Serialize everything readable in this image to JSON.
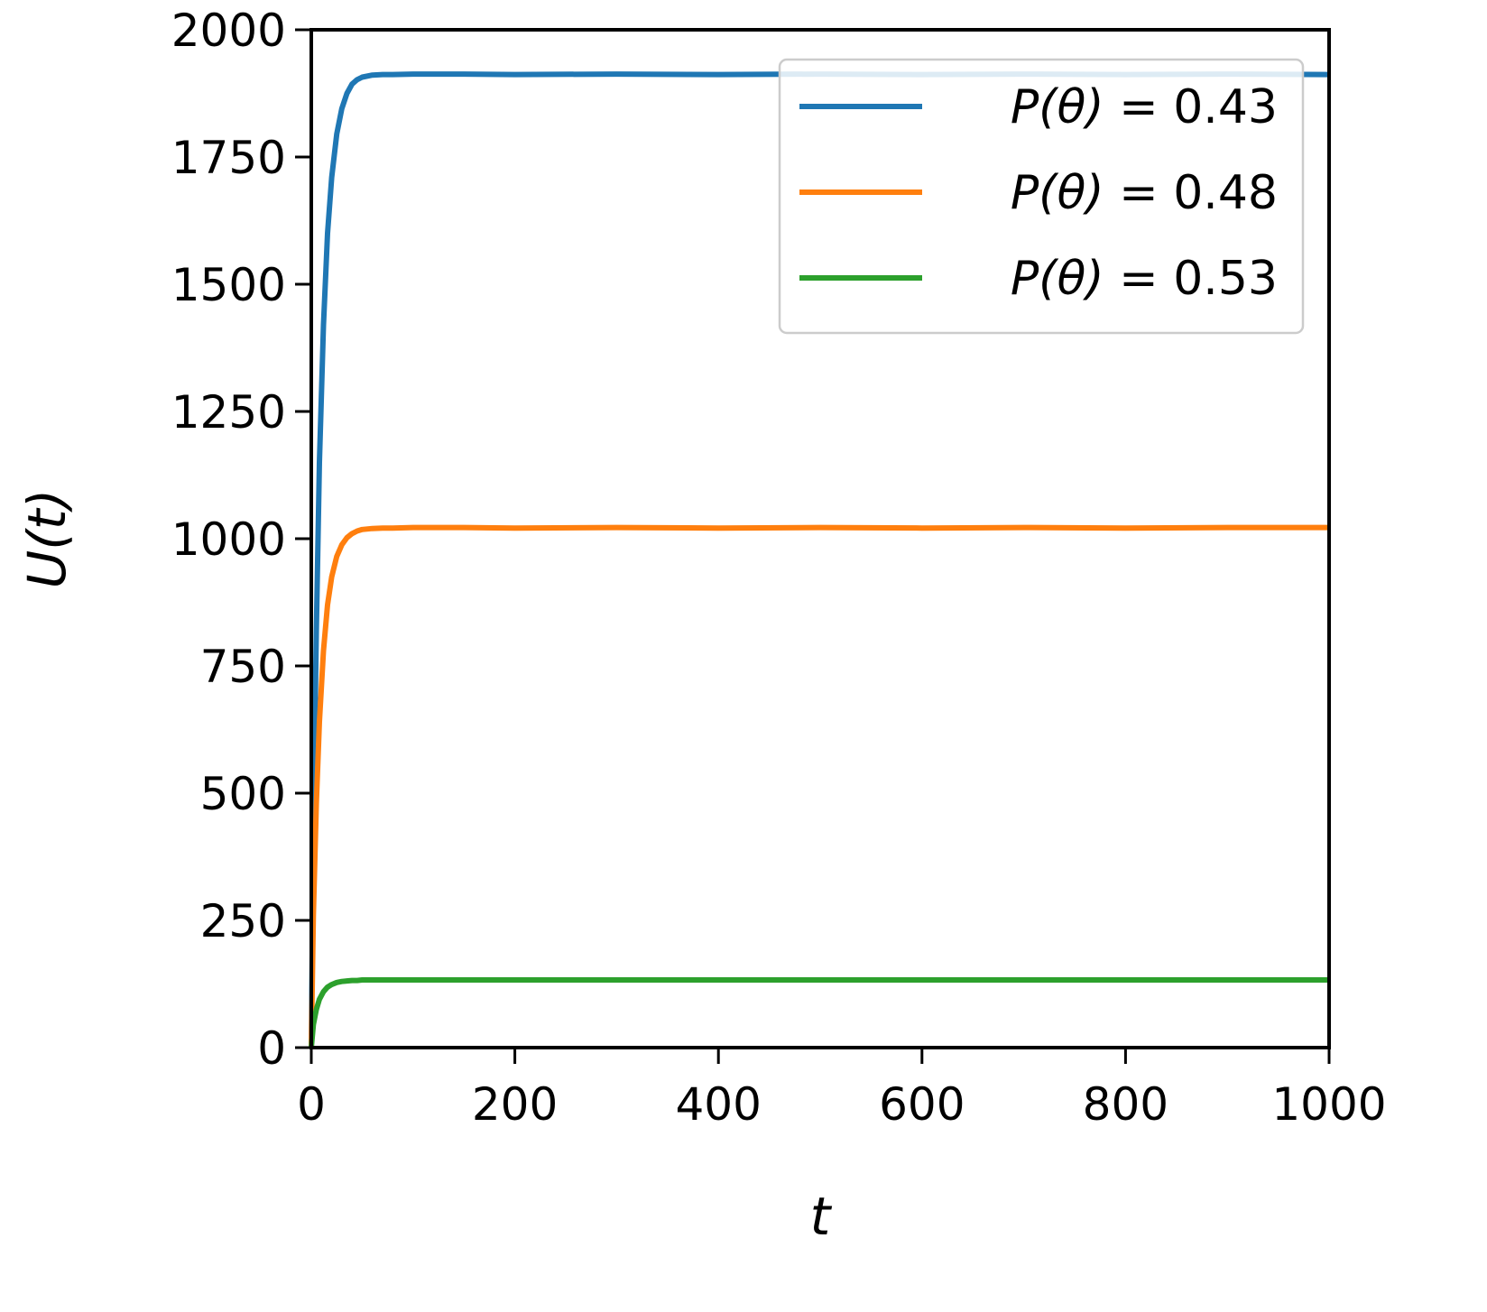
{
  "chart_data": {
    "type": "line",
    "title": "",
    "xlabel": "t",
    "ylabel": "U(t)",
    "xlim": [
      0,
      1000
    ],
    "ylim": [
      0,
      2000
    ],
    "xticks": [
      "0",
      "200",
      "400",
      "600",
      "800",
      "1000"
    ],
    "yticks": [
      "0",
      "250",
      "500",
      "750",
      "1000",
      "1250",
      "1500",
      "1750",
      "2000"
    ],
    "grid": false,
    "legend_position": "top-right",
    "series": [
      {
        "name": "P(θ) = 0.43",
        "legend": {
          "prefix": "P(θ)",
          "eq": " = ",
          "value": "0.43"
        },
        "color": "#1f77b4",
        "x": [
          0,
          2,
          5,
          8,
          12,
          16,
          20,
          25,
          30,
          35,
          40,
          45,
          50,
          60,
          70,
          80,
          100,
          150,
          200,
          300,
          400,
          500,
          600,
          700,
          800,
          900,
          1000
        ],
        "y": [
          0,
          420,
          820,
          1150,
          1420,
          1600,
          1710,
          1795,
          1845,
          1875,
          1893,
          1902,
          1907,
          1911,
          1912,
          1912,
          1913,
          1913,
          1912,
          1913,
          1912,
          1913,
          1912,
          1913,
          1912,
          1913,
          1912
        ]
      },
      {
        "name": "P(θ) = 0.48",
        "legend": {
          "prefix": "P(θ)",
          "eq": " = ",
          "value": "0.48"
        },
        "color": "#ff7f0e",
        "x": [
          0,
          2,
          5,
          8,
          12,
          16,
          20,
          25,
          30,
          35,
          40,
          45,
          50,
          60,
          70,
          80,
          100,
          150,
          200,
          300,
          400,
          500,
          600,
          700,
          800,
          900,
          1000
        ],
        "y": [
          0,
          260,
          480,
          640,
          780,
          870,
          925,
          965,
          988,
          1002,
          1010,
          1015,
          1018,
          1020,
          1021,
          1021,
          1022,
          1022,
          1021,
          1022,
          1021,
          1022,
          1021,
          1022,
          1021,
          1022,
          1022
        ]
      },
      {
        "name": "P(θ) = 0.53",
        "legend": {
          "prefix": "P(θ)",
          "eq": " = ",
          "value": "0.53"
        },
        "color": "#2ca02c",
        "x": [
          0,
          2,
          5,
          8,
          12,
          16,
          20,
          25,
          30,
          35,
          40,
          45,
          50,
          60,
          70,
          80,
          100,
          150,
          200,
          300,
          400,
          500,
          600,
          700,
          800,
          900,
          1000
        ],
        "y": [
          0,
          45,
          75,
          95,
          110,
          119,
          124,
          128,
          130,
          131,
          132,
          132,
          133,
          133,
          133,
          133,
          133,
          133,
          133,
          133,
          133,
          133,
          133,
          133,
          133,
          133,
          133
        ]
      }
    ]
  }
}
